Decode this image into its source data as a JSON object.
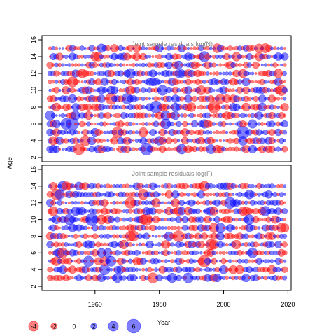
{
  "chart_data": {
    "type": "scatter",
    "ylabel": "Age",
    "xlabel": "Year",
    "xlim": [
      1943.5,
      2021
    ],
    "x_ticks": [
      1960,
      1980,
      2000,
      2020
    ],
    "x_tick_labels": [
      "1960",
      "1980",
      "2000",
      "2020"
    ],
    "panels": [
      {
        "title": "Joint sample residuals log(N)",
        "ylim": [
          1.5,
          16.5
        ],
        "y_ticks": [
          2,
          4,
          6,
          8,
          10,
          12,
          14,
          16
        ],
        "y_tick_labels": [
          "2",
          "4",
          "6",
          "8",
          "10",
          "12",
          "14",
          "16"
        ],
        "ages": [
          3,
          4,
          5,
          6,
          7,
          8,
          9,
          10,
          11,
          12,
          13,
          14,
          15
        ],
        "years": [
          1946,
          2019
        ],
        "seed": 7
      },
      {
        "title": "Joint sample residuals log(F)",
        "ylim": [
          1.5,
          16.5
        ],
        "y_ticks": [
          2,
          4,
          6,
          8,
          10,
          12,
          14,
          16
        ],
        "y_tick_labels": [
          "2",
          "4",
          "6",
          "8",
          "10",
          "12",
          "14",
          "16"
        ],
        "ages": [
          3,
          4,
          5,
          6,
          7,
          8,
          9,
          10,
          11,
          12,
          13,
          14
        ],
        "years": [
          1946,
          2019
        ],
        "seed": 23
      }
    ],
    "legend": {
      "placement": "bottom-left",
      "entries": [
        {
          "label": "-4",
          "value": -4
        },
        {
          "label": "-2",
          "value": -2
        },
        {
          "label": "0",
          "value": 0
        },
        {
          "label": "2",
          "value": 2
        },
        {
          "label": "4",
          "value": 4
        },
        {
          "label": "6",
          "value": 6
        }
      ]
    },
    "colors": {
      "negative": "#ff0000",
      "positive": "#0000ff",
      "panel_title": "#808080",
      "axis": "#000000"
    }
  }
}
